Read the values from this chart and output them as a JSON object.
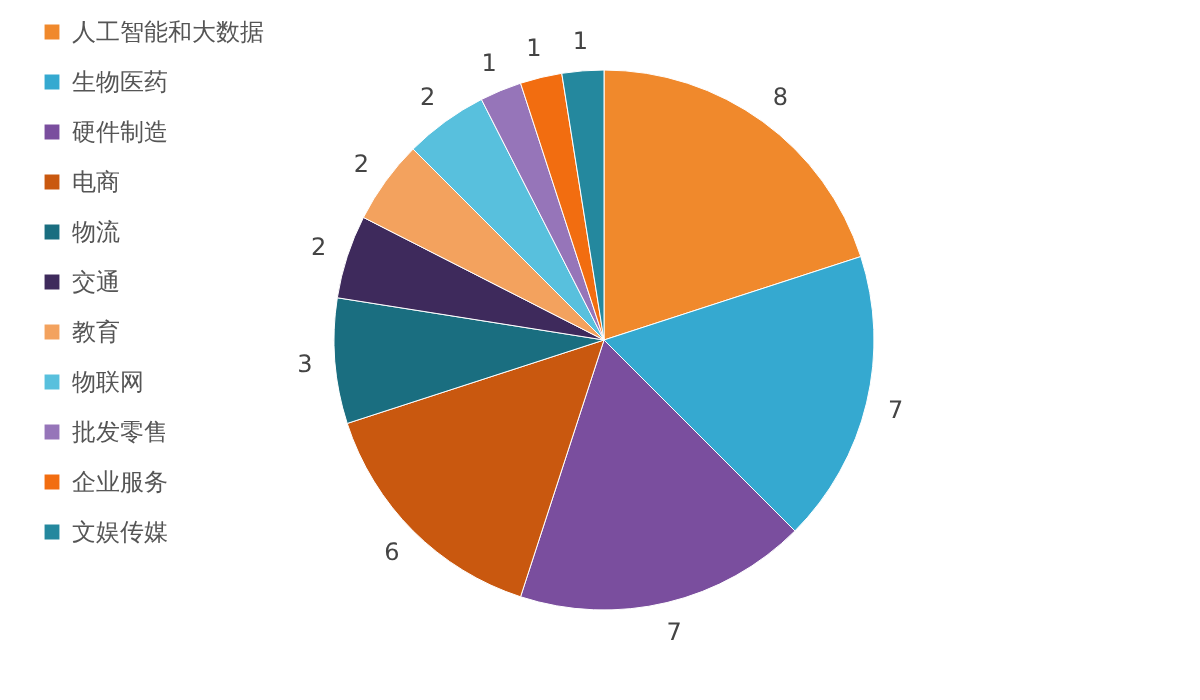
{
  "chart_data": {
    "type": "pie",
    "categories": [
      "人工智能和大数据",
      "生物医药",
      "硬件制造",
      "电商",
      "物流",
      "交通",
      "教育",
      "物联网",
      "批发零售",
      "企业服务",
      "文娱传媒"
    ],
    "values": [
      8,
      7,
      7,
      6,
      3,
      2,
      2,
      2,
      1,
      1,
      1
    ],
    "colors": [
      "#f0892c",
      "#35a9d0",
      "#7a4e9e",
      "#c9580f",
      "#1a6e80",
      "#3e2a5c",
      "#f3a25e",
      "#58c0dd",
      "#9675b9",
      "#f26d10",
      "#24889e"
    ],
    "data_labels": true,
    "legend": "left"
  }
}
